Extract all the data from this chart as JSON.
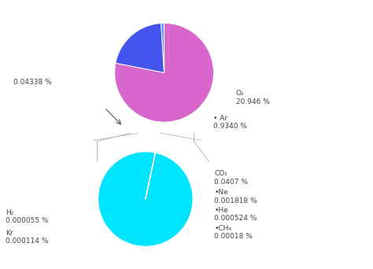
{
  "top_pie": {
    "values": [
      78.084,
      20.946,
      0.934,
      0.04338
    ],
    "colors": [
      "#d966cc",
      "#4455ee",
      "#6688ff",
      "#d966cc"
    ],
    "startangle": 90
  },
  "bottom_pie": {
    "values": [
      99.956009,
      0.0407,
      0.001818,
      0.000524,
      0.00018,
      0.000114,
      5.5e-05
    ],
    "colors": [
      "#00e5ff",
      "#aa2200",
      "#ff8866",
      "#00e5ff",
      "#00e5ff",
      "#00e5ff",
      "#00e5ff"
    ],
    "startangle": 78
  },
  "bg_color": "#ffffff",
  "text_color": "#444444",
  "fontsize": 6.5,
  "line_color": "#aaaaaa"
}
